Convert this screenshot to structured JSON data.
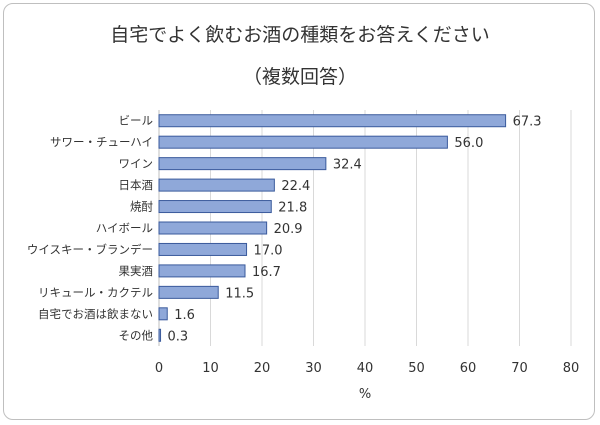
{
  "chart_data": {
    "type": "bar",
    "orientation": "horizontal",
    "title": "自宅でよく飲むお酒の種類をお答えください",
    "subtitle": "（複数回答）",
    "xlabel": "%",
    "xlim": [
      0,
      80
    ],
    "xticks": [
      0,
      10,
      20,
      30,
      40,
      50,
      60,
      70,
      80
    ],
    "categories": [
      "ビール",
      "サワー・チューハイ",
      "ワイン",
      "日本酒",
      "焼酎",
      "ハイボール",
      "ウイスキー・ブランデー",
      "果実酒",
      "リキュール・カクテル",
      "自宅でお酒は飲まない",
      "その他"
    ],
    "values": [
      67.3,
      56.0,
      32.4,
      22.4,
      21.8,
      20.9,
      17.0,
      16.7,
      11.5,
      1.6,
      0.3
    ],
    "value_labels": [
      "67.3",
      "56.0",
      "32.4",
      "22.4",
      "21.8",
      "20.9",
      "17.0",
      "16.7",
      "11.5",
      "1.6",
      "0.3"
    ],
    "grid": true,
    "bar_color": "#8fa8d9",
    "bar_border": "#3a5a9c"
  }
}
